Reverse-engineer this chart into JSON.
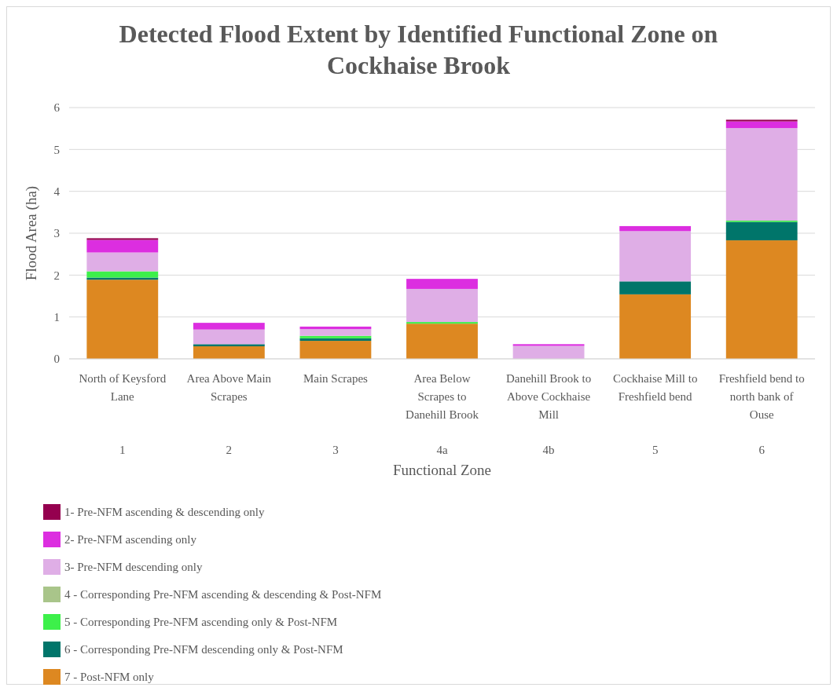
{
  "chart_data": {
    "type": "bar",
    "stacked": true,
    "title": "Detected Flood Extent by Identified Functional Zone on Cockhaise Brook",
    "xlabel": "Functional Zone",
    "ylabel": "Flood Area (ha)",
    "categories": [
      "North of Keysford Lane",
      "Area Above Main Scrapes",
      "Main Scrapes",
      "Area Below Scrapes to Danehill Brook",
      "Danehill Brook to Above Cockhaise Mill",
      "Cockhaise Mill to Freshfield bend",
      "Freshfield bend to north bank of Ouse"
    ],
    "annotations": [
      "1",
      "2",
      "3",
      "4a",
      "4b",
      "5",
      "6"
    ],
    "series": [
      {
        "name": "7 - Post-NFM only",
        "color": "#dd8821",
        "values": [
          1.89,
          0.3,
          0.43,
          0.84,
          null,
          1.54,
          2.83
        ]
      },
      {
        "name": "6 - Corresponding Pre-NFM descending only & Post-NFM",
        "color": "#00756a",
        "values": [
          0.05,
          0.05,
          0.06,
          0,
          null,
          0.31,
          0.44
        ]
      },
      {
        "name": "5 - Corresponding Pre-NFM ascending only & Post-NFM",
        "color": "#3df04a",
        "values": [
          0.15,
          0,
          0.06,
          0.04,
          0,
          0,
          0.03
        ]
      },
      {
        "name": "4 - Corresponding Pre-NFM ascending & descending & Post-NFM",
        "color": "#a9c58a",
        "values": [
          0,
          0,
          0,
          0,
          0,
          0,
          0
        ]
      },
      {
        "name": "3- Pre-NFM descending only",
        "color": "#dfaee6",
        "values": [
          0.45,
          0.35,
          0.16,
          0.79,
          0.31,
          1.2,
          2.21
        ]
      },
      {
        "name": "2- Pre-NFM ascending only",
        "color": "#dc2ee0",
        "values": [
          0.3,
          0.16,
          0.06,
          0.24,
          0.04,
          0.12,
          0.16
        ]
      },
      {
        "name": "1- Pre-NFM ascending & descending only",
        "color": "#95004f",
        "values": [
          0.04,
          0,
          0,
          0,
          0,
          0,
          0.04
        ]
      }
    ],
    "ylim": [
      0,
      6
    ],
    "yticks": [
      0,
      1,
      2,
      3,
      4,
      5,
      6
    ],
    "grid": "y",
    "legend": "bottom left"
  }
}
